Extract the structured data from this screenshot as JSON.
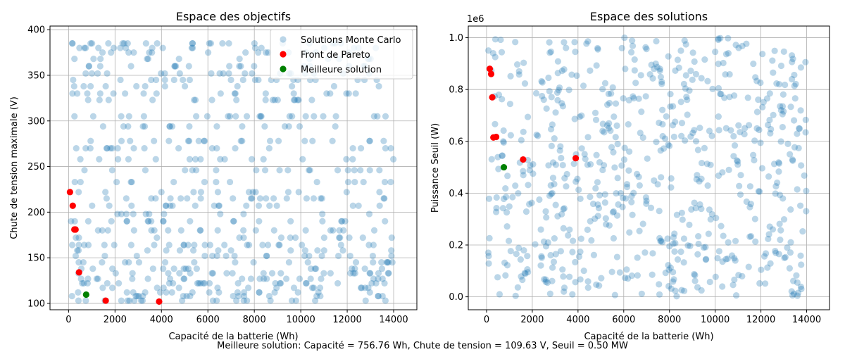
{
  "chart_data": [
    {
      "type": "scatter",
      "title": "Espace des objectifs",
      "xlabel": "Capacité de la batterie (Wh)",
      "ylabel": "Chute de tension maximale (V)",
      "xlim": [
        -800,
        15000
      ],
      "ylim": [
        93,
        404
      ],
      "xticks": [
        0,
        2000,
        4000,
        6000,
        8000,
        10000,
        12000,
        14000
      ],
      "xtick_labels": [
        "0",
        "2000",
        "4000",
        "6000",
        "8000",
        "10000",
        "12000",
        "14000"
      ],
      "yticks": [
        100,
        150,
        200,
        250,
        300,
        350,
        400
      ],
      "ytick_labels": [
        "100",
        "150",
        "200",
        "250",
        "300",
        "350",
        "400"
      ],
      "grid": true,
      "legend": "top-right",
      "legend_entries": [
        "Solutions Monte Carlo",
        "Front de Pareto",
        "Meilleure solution"
      ],
      "series": [
        {
          "name": "Solutions Monte Carlo",
          "color": "#1f77b4",
          "style": "cloud",
          "n": 650,
          "x_range": [
            50,
            14000
          ],
          "y_levels": [
            103,
            108,
            112,
            117,
            122,
            127,
            133,
            138,
            145,
            152,
            158,
            164,
            172,
            180,
            190,
            198,
            207,
            215,
            222,
            233,
            246,
            258,
            270,
            278,
            294,
            305,
            323,
            330,
            338,
            345,
            352,
            360,
            368,
            375,
            380,
            385
          ],
          "seed": 7
        },
        {
          "name": "Front de Pareto",
          "color": "#ff0000",
          "style": "points",
          "x": [
            60,
            180,
            250,
            300,
            450,
            1600,
            3900
          ],
          "y": [
            222,
            207,
            181,
            181,
            134,
            103,
            102
          ]
        },
        {
          "name": "Meilleure solution",
          "color": "#008000",
          "style": "points",
          "x": [
            756.76
          ],
          "y": [
            109.63
          ]
        }
      ]
    },
    {
      "type": "scatter",
      "title": "Espace des solutions",
      "xlabel": "Capacité de la batterie (Wh)",
      "ylabel": "Puissance Seuil (W)",
      "offset_text": "1e6",
      "xlim": [
        -800,
        15000
      ],
      "ylim": [
        -0.05,
        1.045
      ],
      "xticks": [
        0,
        2000,
        4000,
        6000,
        8000,
        10000,
        12000,
        14000
      ],
      "xtick_labels": [
        "0",
        "2000",
        "4000",
        "6000",
        "8000",
        "10000",
        "12000",
        "14000"
      ],
      "yticks": [
        0.0,
        0.2,
        0.4,
        0.6,
        0.8,
        1.0
      ],
      "ytick_labels": [
        "0.0",
        "0.2",
        "0.4",
        "0.6",
        "0.8",
        "1.0"
      ],
      "grid": true,
      "series": [
        {
          "name": "",
          "color": "#1f77b4",
          "style": "cloud",
          "n": 650,
          "x_range": [
            50,
            14000
          ],
          "y_range": [
            0.0,
            1.0
          ],
          "seed": 13
        },
        {
          "name": "",
          "color": "#ff0000",
          "style": "points",
          "x": [
            140,
            200,
            250,
            300,
            420,
            1600,
            3900
          ],
          "y": [
            0.88,
            0.86,
            0.77,
            0.615,
            0.617,
            0.53,
            0.535
          ]
        },
        {
          "name": "",
          "color": "#008000",
          "style": "points",
          "x": [
            756.76
          ],
          "y": [
            0.5
          ]
        }
      ]
    }
  ],
  "footer": "Meilleure solution: Capacité = 756.76 Wh, Chute de tension = 109.63 V, Seuil = 0.50 MW"
}
